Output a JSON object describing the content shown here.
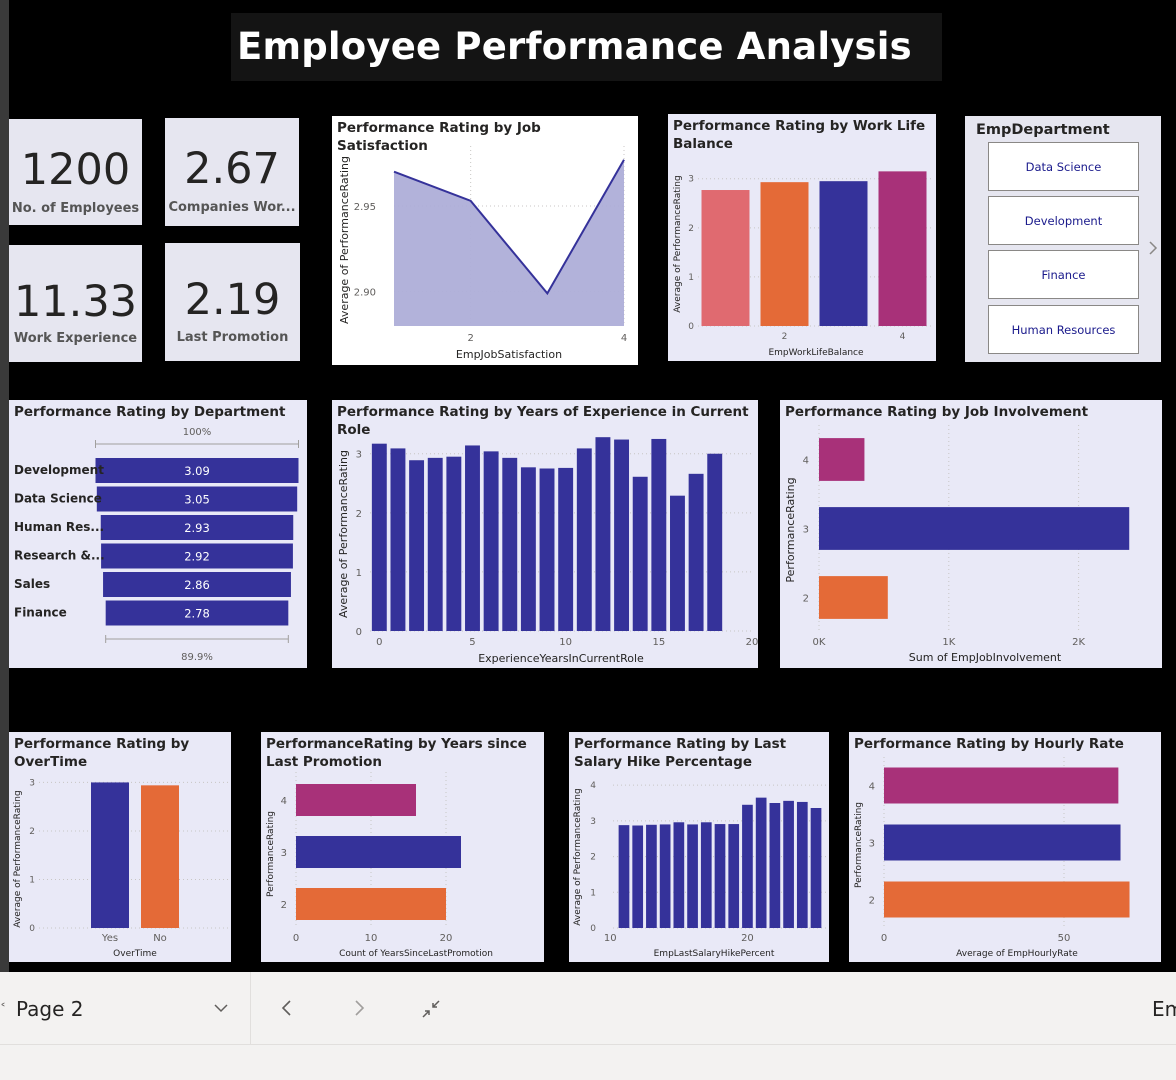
{
  "title": "Employee Performance Analysis",
  "kpis": [
    {
      "value": "1200",
      "label": "No. of Employees"
    },
    {
      "value": "2.67",
      "label": "Companies Wor..."
    },
    {
      "value": "11.33",
      "label": "Work Experience"
    },
    {
      "value": "2.19",
      "label": "Last Promotion"
    }
  ],
  "colors": {
    "navy": "#35329a",
    "orange": "#e46a37",
    "magenta": "#a83179",
    "pink": "#e06a70",
    "area": "#aeaed8"
  },
  "slicer": {
    "title": "EmpDepartment",
    "items": [
      "Data Science",
      "Development",
      "Finance",
      "Human Resources"
    ],
    "next_icon": "chevron-right-icon"
  },
  "bottombar": {
    "page_label": "Page 2",
    "dropdown_icon": "chevron-down-icon",
    "prev_icon": "chevron-left-icon",
    "next_icon": "chevron-right-icon",
    "collapse_icon": "collapse-icon",
    "right_text": "Em"
  },
  "chart_data": [
    {
      "id": "job_satisfaction",
      "type": "area",
      "title": "Performance Rating by Job Satisfaction",
      "xlabel": "EmpJobSatisfaction",
      "ylabel": "Average of PerformanceRating",
      "x": [
        1,
        2,
        3,
        4
      ],
      "values": [
        2.97,
        2.953,
        2.899,
        2.977
      ],
      "xlim": [
        1,
        4
      ],
      "ylim": [
        2.88,
        2.985
      ],
      "xticks": [
        2,
        4
      ],
      "yticks": [
        2.9,
        2.95
      ],
      "yticklabels": [
        "2.90",
        "2.95"
      ]
    },
    {
      "id": "work_life_balance",
      "type": "bar",
      "title": "Performance Rating by Work Life Balance",
      "xlabel": "EmpWorkLifeBalance",
      "ylabel": "Average of PerformanceRating",
      "categories": [
        1,
        2,
        3,
        4
      ],
      "values": [
        2.77,
        2.93,
        2.95,
        3.15
      ],
      "bar_colors": [
        "#e06a70",
        "#e46a37",
        "#35329a",
        "#a83179"
      ],
      "ylim": [
        0,
        3.3
      ],
      "yticks": [
        0,
        1,
        2,
        3
      ],
      "xticks": [
        2,
        4
      ]
    },
    {
      "id": "department",
      "type": "bar",
      "orientation": "funnel",
      "title": "Performance Rating by Department",
      "categories": [
        "Development",
        "Data Science",
        "Human Res...",
        "Research &...",
        "Sales",
        "Finance"
      ],
      "values": [
        3.09,
        3.05,
        2.93,
        2.92,
        2.86,
        2.78
      ],
      "value_labels": [
        "3.09",
        "3.05",
        "2.93",
        "2.92",
        "2.86",
        "2.78"
      ],
      "top_label": "100%",
      "bottom_label": "89.9%"
    },
    {
      "id": "years_current_role",
      "type": "bar",
      "title": "Performance Rating by Years of Experience in Current Role",
      "xlabel": "ExperienceYearsInCurrentRole",
      "ylabel": "Average of PerformanceRating",
      "x": [
        0,
        1,
        2,
        3,
        4,
        5,
        6,
        7,
        8,
        9,
        10,
        11,
        12,
        13,
        14,
        15,
        16,
        17,
        18
      ],
      "values": [
        3.17,
        3.09,
        2.89,
        2.93,
        2.95,
        3.14,
        3.04,
        2.93,
        2.77,
        2.75,
        2.76,
        3.09,
        3.28,
        3.24,
        2.61,
        3.25,
        2.29,
        2.66,
        3.0
      ],
      "xlim": [
        -0.5,
        20
      ],
      "ylim": [
        0,
        3.3
      ],
      "xticks": [
        0,
        5,
        10,
        15,
        20
      ],
      "yticks": [
        0,
        1,
        2,
        3
      ]
    },
    {
      "id": "job_involvement",
      "type": "bar",
      "orientation": "horizontal",
      "title": "Performance Rating by Job Involvement",
      "xlabel": "Sum of EmpJobInvolvement",
      "ylabel": "PerformanceRating",
      "categories": [
        4,
        3,
        2
      ],
      "values": [
        350,
        2390,
        530
      ],
      "bar_colors": [
        "#a83179",
        "#35329a",
        "#e46a37"
      ],
      "xlim": [
        0,
        2550
      ],
      "xticks": [
        0,
        1000,
        2000
      ],
      "xticklabels": [
        "0K",
        "1K",
        "2K"
      ]
    },
    {
      "id": "overtime",
      "type": "bar",
      "title": "Performance Rating by OverTime",
      "xlabel": "OverTime",
      "ylabel": "Average of PerformanceRating",
      "categories": [
        "Yes",
        "No"
      ],
      "values": [
        3.0,
        2.94
      ],
      "bar_colors": [
        "#35329a",
        "#e46a37"
      ],
      "ylim": [
        0,
        3.05
      ],
      "yticks": [
        0,
        1,
        2,
        3
      ]
    },
    {
      "id": "years_since_promotion",
      "type": "bar",
      "orientation": "horizontal",
      "title": "PerformanceRating by Years since Last Promotion",
      "xlabel": "Count of YearsSinceLastPromotion",
      "ylabel": "PerformanceRating",
      "categories": [
        4,
        3,
        2
      ],
      "values": [
        16,
        22,
        20
      ],
      "bar_colors": [
        "#a83179",
        "#35329a",
        "#e46a37"
      ],
      "xlim": [
        0,
        32
      ],
      "xticks": [
        0,
        10,
        20
      ]
    },
    {
      "id": "salary_hike",
      "type": "bar",
      "title": "Performance Rating by Last Salary Hike Percentage",
      "xlabel": "EmpLastSalaryHikePercent",
      "ylabel": "Average of PerformanceRating",
      "x": [
        11,
        12,
        13,
        14,
        15,
        16,
        17,
        18,
        19,
        20,
        21,
        22,
        23,
        24,
        25
      ],
      "values": [
        2.88,
        2.87,
        2.89,
        2.9,
        2.96,
        2.9,
        2.96,
        2.91,
        2.91,
        3.45,
        3.65,
        3.5,
        3.56,
        3.53,
        3.36
      ],
      "xlim": [
        10.2,
        25.8
      ],
      "ylim": [
        0,
        4.2
      ],
      "xticks": [
        10,
        20
      ],
      "yticks": [
        0,
        1,
        2,
        3,
        4
      ]
    },
    {
      "id": "hourly_rate",
      "type": "bar",
      "orientation": "horizontal",
      "title": "Performance Rating by Hourly Rate",
      "xlabel": "Average of EmpHourlyRate",
      "ylabel": "PerformanceRating",
      "categories": [
        4,
        3,
        2
      ],
      "values": [
        65.1,
        65.7,
        68.2
      ],
      "bar_colors": [
        "#a83179",
        "#35329a",
        "#e46a37"
      ],
      "xlim": [
        0,
        75
      ],
      "xticks": [
        0,
        50
      ]
    }
  ]
}
